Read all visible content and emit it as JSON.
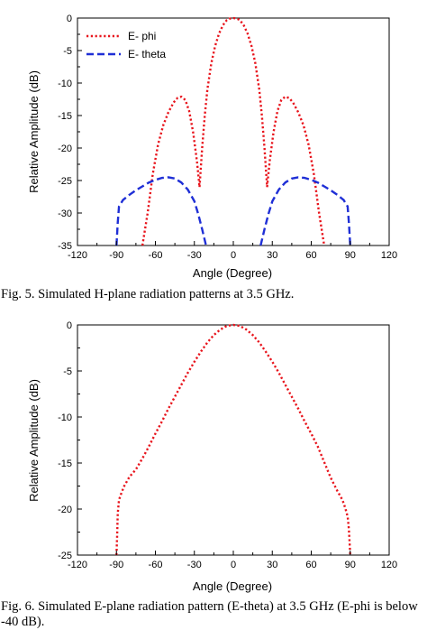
{
  "chart_data": [
    {
      "type": "line",
      "xlabel": "Angle (Degree)",
      "ylabel": "Relative Amplitude (dB)",
      "xlim": [
        -120,
        120
      ],
      "ylim": [
        -35,
        0
      ],
      "xticks": [
        -120,
        -90,
        -60,
        -30,
        0,
        30,
        60,
        90,
        120
      ],
      "yticks": [
        0,
        -5,
        -10,
        -15,
        -20,
        -25,
        -30,
        -35
      ],
      "legend": "top-left",
      "series": [
        {
          "name": "E- phi",
          "color": "#e8141c",
          "style": "dotted",
          "segments": [
            {
              "x": [
                -70,
                -66,
                -62,
                -58,
                -54,
                -50,
                -46,
                -43,
                -40,
                -37,
                -34,
                -31,
                -28,
                -26
              ],
              "y": [
                -35,
                -30,
                -24,
                -19.5,
                -16.5,
                -14.5,
                -13,
                -12.3,
                -12.1,
                -12.6,
                -14.3,
                -17.5,
                -22,
                -26
              ]
            },
            {
              "x": [
                -26,
                -24,
                -22,
                -20,
                -17,
                -14,
                -11,
                -8,
                -5,
                -3,
                0,
                3,
                5,
                8,
                11,
                14,
                17,
                20,
                22,
                24,
                26
              ],
              "y": [
                -26,
                -20,
                -15,
                -11,
                -7,
                -4.3,
                -2.4,
                -1.1,
                -0.3,
                -0.1,
                0,
                -0.1,
                -0.3,
                -1.1,
                -2.4,
                -4.3,
                -7,
                -11,
                -15,
                -20,
                -26
              ]
            },
            {
              "x": [
                26,
                28,
                31,
                34,
                37,
                40,
                43,
                46,
                50,
                54,
                58,
                62,
                66,
                70
              ],
              "y": [
                -26,
                -22,
                -17.5,
                -14.3,
                -12.6,
                -12.1,
                -12.3,
                -13,
                -14.5,
                -16.5,
                -19.5,
                -24,
                -30,
                -35
              ]
            }
          ]
        },
        {
          "name": "E- theta",
          "color": "#1f2fd6",
          "style": "dashed",
          "segments": [
            {
              "x": [
                -90,
                -89,
                -88,
                -85,
                -80,
                -75,
                -70,
                -65,
                -60,
                -55,
                -50,
                -45,
                -40,
                -35,
                -30,
                -27,
                -24,
                -21
              ],
              "y": [
                -35,
                -31.5,
                -29,
                -28,
                -27.2,
                -26.5,
                -25.9,
                -25.3,
                -24.9,
                -24.6,
                -24.5,
                -24.7,
                -25.3,
                -26.4,
                -28.2,
                -30.2,
                -32.5,
                -35
              ]
            },
            {
              "x": [
                21,
                24,
                27,
                30,
                35,
                40,
                45,
                50,
                55,
                60,
                65,
                70,
                75,
                80,
                85,
                88,
                89,
                90
              ],
              "y": [
                -35,
                -32.5,
                -30.2,
                -28.2,
                -26.4,
                -25.3,
                -24.7,
                -24.5,
                -24.6,
                -24.9,
                -25.3,
                -25.9,
                -26.5,
                -27.2,
                -28,
                -29,
                -31.5,
                -35
              ]
            }
          ]
        }
      ]
    },
    {
      "type": "line",
      "xlabel": "Angle (Degree)",
      "ylabel": "Relative Amplitude (dB)",
      "xlim": [
        -120,
        120
      ],
      "ylim": [
        -25,
        0
      ],
      "xticks": [
        -120,
        -90,
        -60,
        -30,
        0,
        30,
        60,
        90,
        120
      ],
      "yticks": [
        0,
        -5,
        -10,
        -15,
        -20,
        -25
      ],
      "series": [
        {
          "color": "#e8141c",
          "style": "dotted",
          "segments": [
            {
              "x": [
                -90,
                -89.5,
                -89,
                -88,
                -86,
                -84,
                -80,
                -75,
                -70,
                -65,
                -60,
                -55,
                -50,
                -45,
                -40,
                -35,
                -30,
                -25,
                -20,
                -15,
                -10,
                -5,
                0,
                5,
                10,
                15,
                20,
                25,
                30,
                35,
                40,
                45,
                50,
                55,
                60,
                65,
                70,
                75,
                80,
                84,
                86,
                88,
                89,
                89.5,
                90
              ],
              "y": [
                -25,
                -23,
                -20.5,
                -19,
                -18.2,
                -17.5,
                -16.5,
                -15.7,
                -14.5,
                -13.2,
                -11.8,
                -10.5,
                -9.1,
                -7.8,
                -6.5,
                -5.2,
                -4,
                -2.9,
                -1.9,
                -1.1,
                -0.5,
                -0.1,
                0,
                -0.1,
                -0.5,
                -1.1,
                -1.9,
                -2.9,
                -4,
                -5.2,
                -6.5,
                -7.8,
                -9.1,
                -10.5,
                -11.8,
                -13.2,
                -14.9,
                -16.6,
                -18,
                -19,
                -19.8,
                -20.8,
                -22.2,
                -23.5,
                -25
              ]
            }
          ]
        }
      ]
    }
  ],
  "captions": [
    "Fig. 5.  Simulated H-plane radiation patterns at 3.5 GHz.",
    "Fig. 6.   Simulated E-plane radiation pattern (E-theta) at 3.5 GHz (E-phi is below -40 dB)."
  ]
}
